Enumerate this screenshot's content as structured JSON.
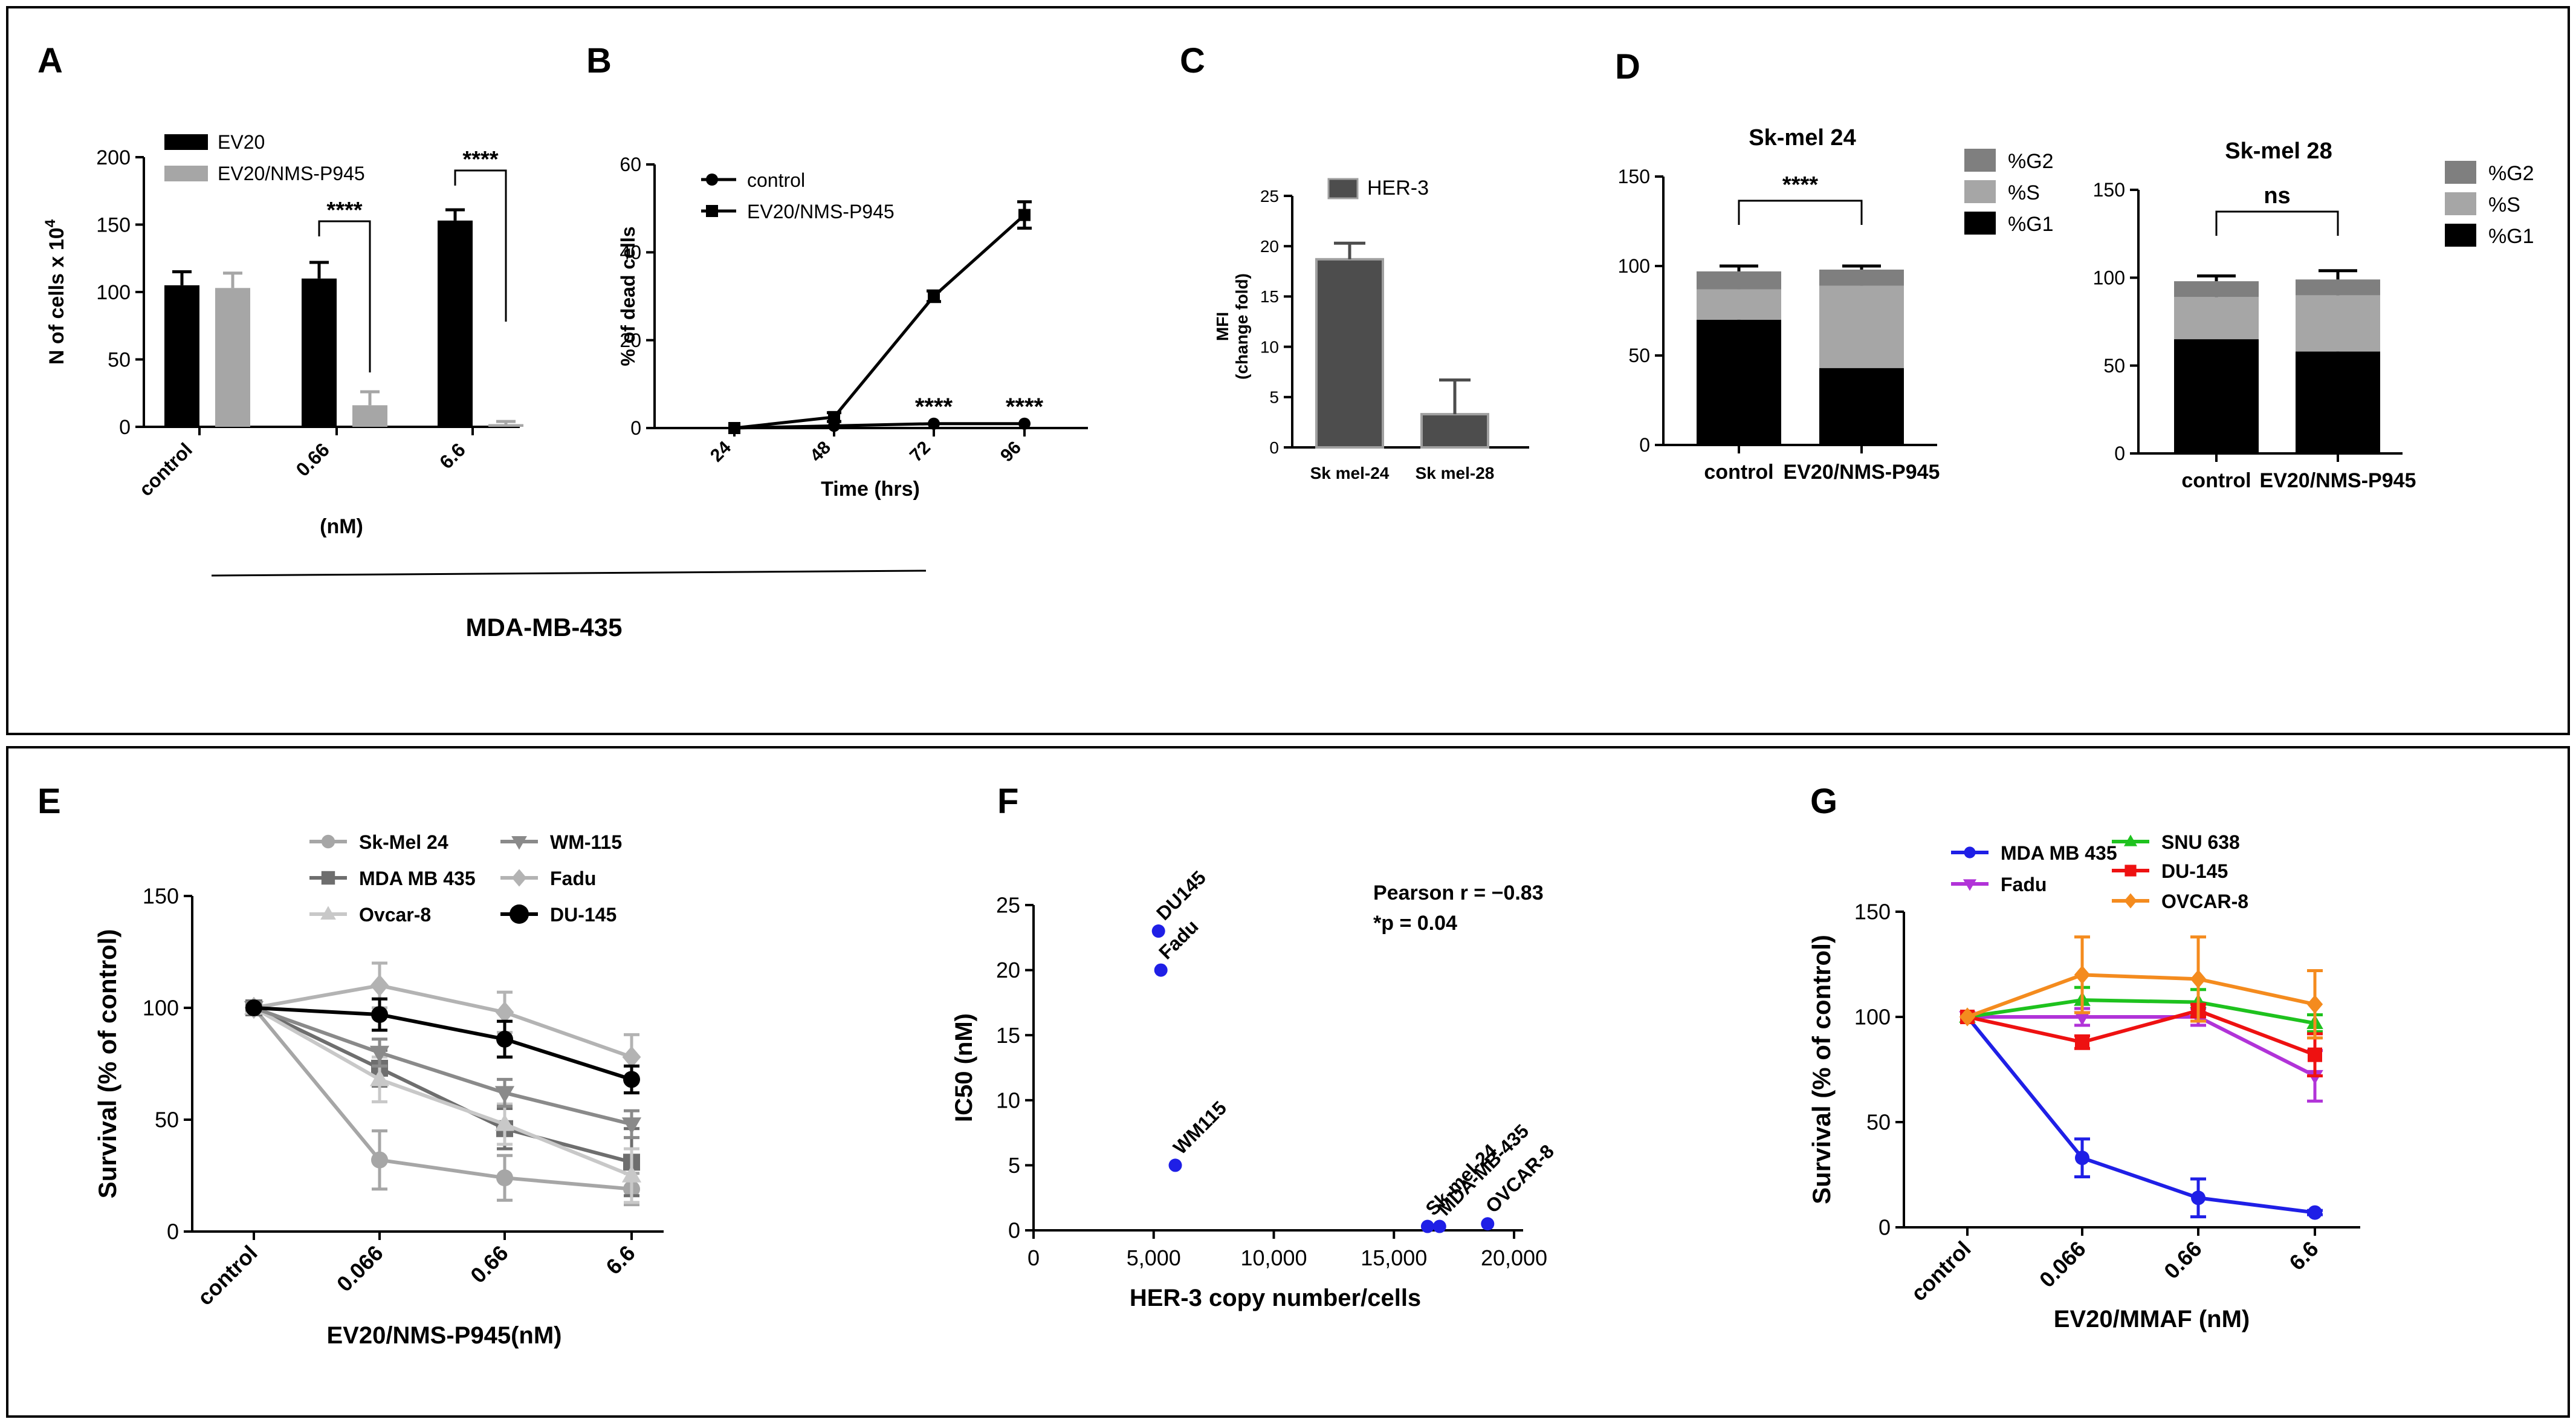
{
  "colors": {
    "black": "#000000",
    "gray_light": "#a6a6a6",
    "gray_mid": "#7f7f7f",
    "gray_dark": "#4d4d4d",
    "blue": "#1f1fe6",
    "purple": "#b133d8",
    "green": "#1ec21e",
    "red": "#ee1111",
    "orange": "#f48b1e"
  },
  "chart_data": [
    {
      "panel": "A",
      "type": "bar",
      "title": "",
      "ylabel": "N of cells x 10",
      "ylabel_sup": "4",
      "ylim": [
        0,
        200
      ],
      "yticks": [
        0,
        50,
        100,
        150,
        200
      ],
      "categories": [
        "control",
        "0.66",
        "6.6"
      ],
      "unit_label": "(nM)",
      "caption": "MDA-MB-435",
      "series": [
        {
          "name": "EV20",
          "color": "#000000",
          "values": [
            105,
            110,
            153
          ],
          "errors": [
            10,
            12,
            8
          ]
        },
        {
          "name": "EV20/NMS-P945",
          "color": "#a6a6a6",
          "values": [
            103,
            16,
            2
          ],
          "errors": [
            11,
            10,
            2
          ]
        }
      ],
      "annotations": [
        {
          "category": "0.66",
          "text": "****"
        },
        {
          "category": "6.6",
          "text": "****"
        }
      ]
    },
    {
      "panel": "B",
      "type": "line",
      "xlabel": "Time (hrs)",
      "ylabel": "% of dead cells",
      "ylim": [
        0,
        60
      ],
      "yticks": [
        0,
        20,
        40,
        60
      ],
      "categories": [
        "24",
        "48",
        "72",
        "96"
      ],
      "series": [
        {
          "name": "control",
          "marker": "circle",
          "values": [
            0,
            0.5,
            1,
            1
          ],
          "errors": [
            0,
            0,
            0,
            0
          ]
        },
        {
          "name": "EV20/NMS-P945",
          "marker": "square",
          "values": [
            0,
            2.5,
            30,
            48.5
          ],
          "errors": [
            0,
            1,
            1.2,
            3
          ]
        }
      ],
      "annotations": [
        {
          "category": "72",
          "text": "****"
        },
        {
          "category": "96",
          "text": "****"
        }
      ]
    },
    {
      "panel": "C",
      "type": "bar",
      "ylabel": "MFI",
      "ylabel2": "(change fold)",
      "ylim": [
        0,
        25
      ],
      "yticks": [
        0,
        5,
        10,
        15,
        20,
        25
      ],
      "categories": [
        "Sk mel-24",
        "Sk mel-28"
      ],
      "series": [
        {
          "name": "HER-3",
          "color": "#4d4d4d",
          "values": [
            18.7,
            3.3
          ],
          "errors": [
            1.6,
            3.4
          ]
        }
      ]
    },
    {
      "panel": "D",
      "type": "bar",
      "title": "Sk-mel 24",
      "ylim": [
        0,
        150
      ],
      "yticks": [
        0,
        50,
        100,
        150
      ],
      "categories": [
        "control",
        "EV20/NMS-P945"
      ],
      "stacked": true,
      "series": [
        {
          "name": "%G1",
          "color": "#000000",
          "values": [
            70,
            43
          ],
          "errors": [
            3,
            0
          ]
        },
        {
          "name": "%S",
          "color": "#a6a6a6",
          "values": [
            17,
            46
          ],
          "errors": [
            5,
            2
          ]
        },
        {
          "name": "%G2",
          "color": "#7f7f7f",
          "values": [
            10,
            9
          ],
          "errors": [
            3,
            2
          ]
        }
      ],
      "annotation": "****"
    },
    {
      "panel": "D2",
      "type": "bar",
      "title": "Sk-mel 28",
      "ylim": [
        0,
        150
      ],
      "yticks": [
        0,
        50,
        100,
        150
      ],
      "categories": [
        "control",
        "EV20/NMS-P945"
      ],
      "stacked": true,
      "series": [
        {
          "name": "%G1",
          "color": "#000000",
          "values": [
            65,
            58
          ],
          "errors": [
            8,
            11
          ]
        },
        {
          "name": "%S",
          "color": "#a6a6a6",
          "values": [
            24,
            32
          ],
          "errors": [
            4,
            4
          ]
        },
        {
          "name": "%G2",
          "color": "#7f7f7f",
          "values": [
            9,
            9
          ],
          "errors": [
            3,
            5
          ]
        }
      ],
      "annotation": "ns"
    },
    {
      "panel": "E",
      "type": "line",
      "xlabel": "EV20/NMS-P945(nM)",
      "ylabel": "Survival (% of control)",
      "ylim": [
        0,
        150
      ],
      "yticks": [
        0,
        50,
        100,
        150
      ],
      "categories": [
        "control",
        "0.066",
        "0.66",
        "6.6"
      ],
      "series": [
        {
          "name": "Sk-Mel 24",
          "marker": "circle",
          "color": "#a6a6a6",
          "values": [
            100,
            32,
            24,
            19
          ],
          "errors": [
            0,
            13,
            10,
            7
          ]
        },
        {
          "name": "MDA MB 435",
          "marker": "square",
          "color": "#6e6e6e",
          "values": [
            100,
            73,
            46,
            31
          ],
          "errors": [
            0,
            8,
            9,
            15
          ]
        },
        {
          "name": "Ovcar-8",
          "marker": "triangle-up",
          "color": "#c8c8c8",
          "values": [
            100,
            68,
            48,
            25
          ],
          "errors": [
            0,
            10,
            9,
            12
          ]
        },
        {
          "name": "WM-115",
          "marker": "triangle-down",
          "color": "#8a8a8a",
          "values": [
            100,
            80,
            62,
            48
          ],
          "errors": [
            0,
            6,
            6,
            6
          ]
        },
        {
          "name": "Fadu",
          "marker": "diamond",
          "color": "#b3b3b3",
          "values": [
            100,
            110,
            98,
            78
          ],
          "errors": [
            0,
            10,
            9,
            10
          ]
        },
        {
          "name": "DU-145",
          "marker": "circle",
          "color": "#000000",
          "values": [
            100,
            97,
            86,
            68
          ],
          "errors": [
            0,
            7,
            8,
            6
          ]
        }
      ]
    },
    {
      "panel": "F",
      "type": "scatter",
      "xlabel": "HER-3 copy number/cells",
      "ylabel": "IC50 (nM)",
      "xlim": [
        0,
        20000
      ],
      "ylim": [
        0,
        25
      ],
      "xticks": [
        0,
        5000,
        10000,
        15000,
        20000
      ],
      "xtick_labels": [
        "0",
        "5,000",
        "10,000",
        "15,000",
        "20,000"
      ],
      "yticks": [
        0,
        5,
        10,
        15,
        20,
        25
      ],
      "points": [
        {
          "label": "DU145",
          "x": 5200,
          "y": 23
        },
        {
          "label": "Fadu",
          "x": 5300,
          "y": 20
        },
        {
          "label": "WM115",
          "x": 5900,
          "y": 5
        },
        {
          "label": "Sk-mel-24",
          "x": 16400,
          "y": 0.3
        },
        {
          "label": "MDA-MB-435",
          "x": 16900,
          "y": 0.3
        },
        {
          "label": "OVCAR-8",
          "x": 18900,
          "y": 0.5
        }
      ],
      "stats_line1": "Pearson r = −0.83",
      "stats_line2": "*p = 0.04"
    },
    {
      "panel": "G",
      "type": "line",
      "xlabel": "EV20/MMAF (nM)",
      "ylabel": "Survival (% of control)",
      "ylim": [
        0,
        150
      ],
      "yticks": [
        0,
        50,
        100,
        150
      ],
      "categories": [
        "control",
        "0.066",
        "0.66",
        "6.6"
      ],
      "series": [
        {
          "name": "MDA MB 435",
          "marker": "circle",
          "color": "#1f1fe6",
          "values": [
            100,
            33,
            14,
            7
          ],
          "errors": [
            0,
            9,
            9,
            1
          ]
        },
        {
          "name": "Fadu",
          "marker": "triangle-down",
          "color": "#b133d8",
          "values": [
            100,
            100,
            100,
            72
          ],
          "errors": [
            0,
            4,
            4,
            12
          ]
        },
        {
          "name": "SNU 638",
          "marker": "triangle-up",
          "color": "#1ec21e",
          "values": [
            100,
            108,
            107,
            97
          ],
          "errors": [
            0,
            6,
            6,
            4
          ]
        },
        {
          "name": "DU-145",
          "marker": "square",
          "color": "#ee1111",
          "values": [
            100,
            88,
            103,
            82
          ],
          "errors": [
            0,
            3,
            3,
            10
          ]
        },
        {
          "name": "OVCAR-8",
          "marker": "diamond",
          "color": "#f48b1e",
          "values": [
            100,
            120,
            118,
            106
          ],
          "errors": [
            0,
            18,
            20,
            16
          ]
        }
      ]
    }
  ],
  "panel_letters": {
    "A": "A",
    "B": "B",
    "C": "C",
    "D": "D",
    "E": "E",
    "F": "F",
    "G": "G"
  }
}
